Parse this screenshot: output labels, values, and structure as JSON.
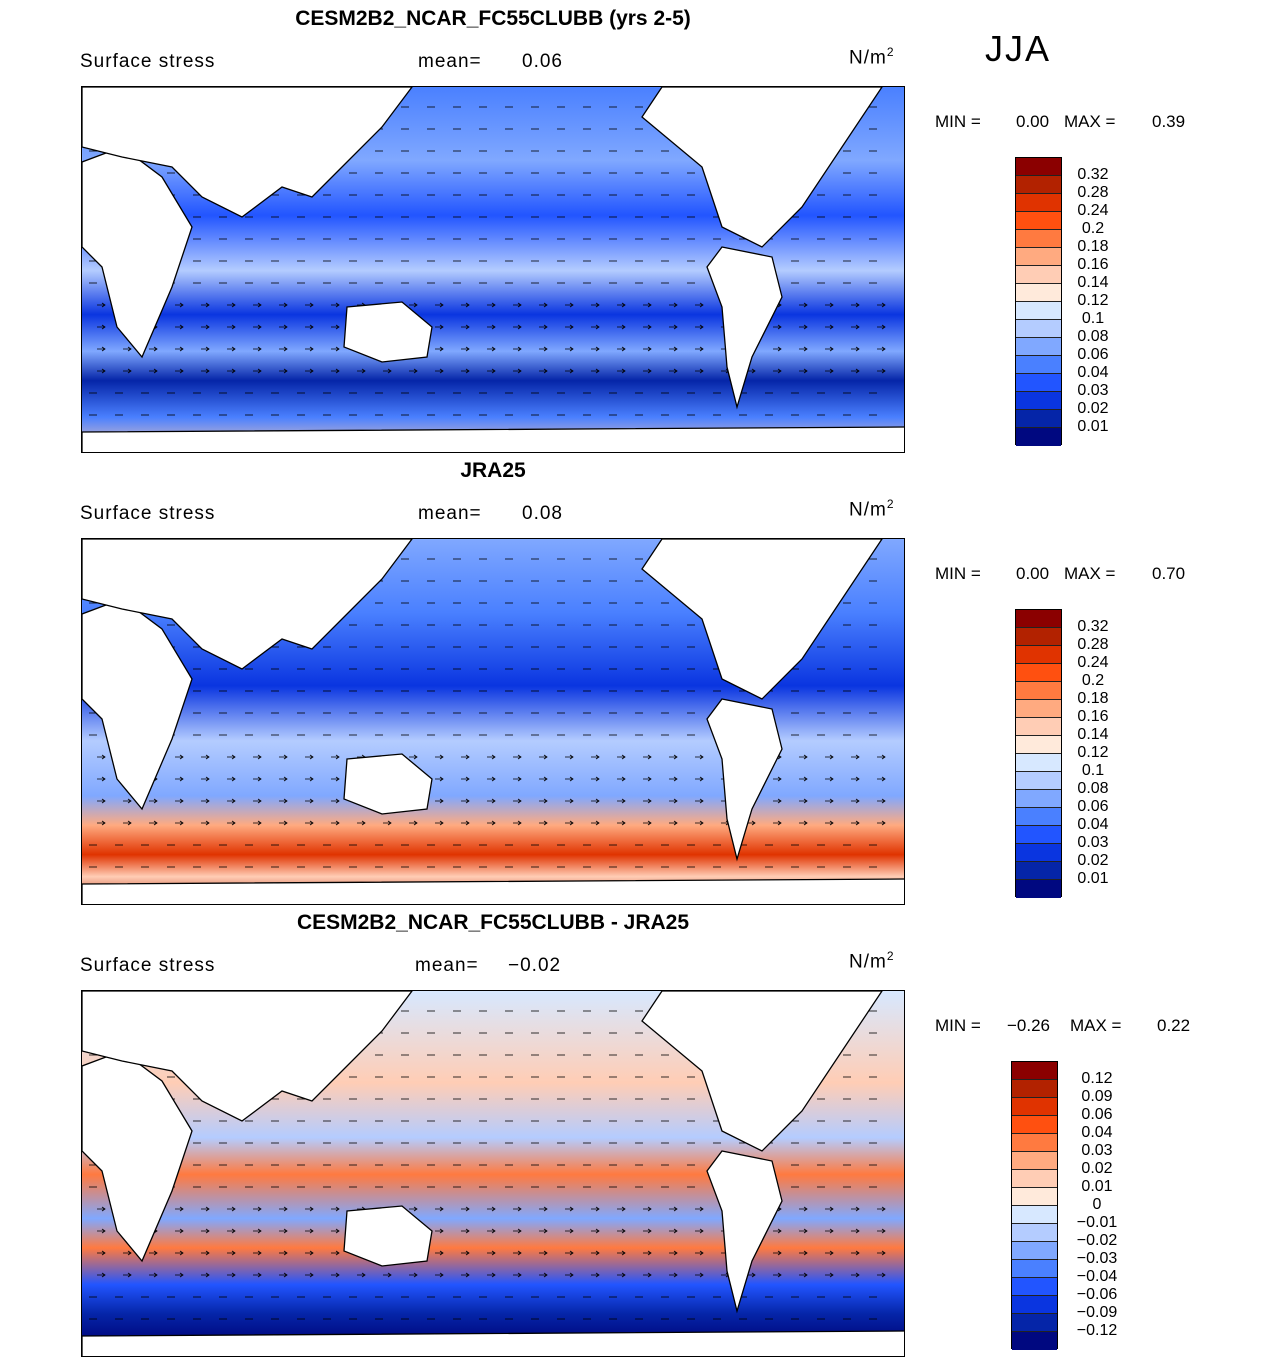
{
  "season": "JJA",
  "colors": [
    "#000880",
    "#0525a8",
    "#0a35e0",
    "#2255ff",
    "#4a80ff",
    "#80a8ff",
    "#b4ccff",
    "#d7e8ff",
    "#ffeadb",
    "#ffcdb5",
    "#ffaa80",
    "#ff7a40",
    "#ff5010",
    "#e03300",
    "#b22200",
    "#8b0000"
  ],
  "panels": [
    {
      "title": "CESM2B2_NCAR_FC55CLUBB (yrs 2-5)",
      "variable": "Surface stress",
      "mean_label": "mean=",
      "mean": "0.06",
      "units": "N/m",
      "units_exp": "2",
      "min_label": "MIN =",
      "min": "0.00",
      "max_label": "MAX =",
      "max": "0.39",
      "levels": [
        "0.32",
        "0.28",
        "0.24",
        "0.2",
        "0.18",
        "0.16",
        "0.14",
        "0.12",
        "0.1",
        "0.08",
        "0.06",
        "0.04",
        "0.03",
        "0.02",
        "0.01"
      ]
    },
    {
      "title": "JRA25",
      "variable": "Surface stress",
      "mean_label": "mean=",
      "mean": "0.08",
      "units": "N/m",
      "units_exp": "2",
      "min_label": "MIN =",
      "min": "0.00",
      "max_label": "MAX =",
      "max": "0.70",
      "levels": [
        "0.32",
        "0.28",
        "0.24",
        "0.2",
        "0.18",
        "0.16",
        "0.14",
        "0.12",
        "0.1",
        "0.08",
        "0.06",
        "0.04",
        "0.03",
        "0.02",
        "0.01"
      ]
    },
    {
      "title": "CESM2B2_NCAR_FC55CLUBB - JRA25",
      "variable": "Surface stress",
      "mean_label": "mean=",
      "mean": "−0.02",
      "units": "N/m",
      "units_exp": "2",
      "min_label": "MIN =",
      "min": "−0.26",
      "max_label": "MAX =",
      "max": "0.22",
      "levels": [
        "0.12",
        "0.09",
        "0.06",
        "0.04",
        "0.03",
        "0.02",
        "0.01",
        "0",
        "−0.01",
        "−0.02",
        "−0.03",
        "−0.04",
        "−0.06",
        "−0.09",
        "−0.12"
      ]
    }
  ]
}
